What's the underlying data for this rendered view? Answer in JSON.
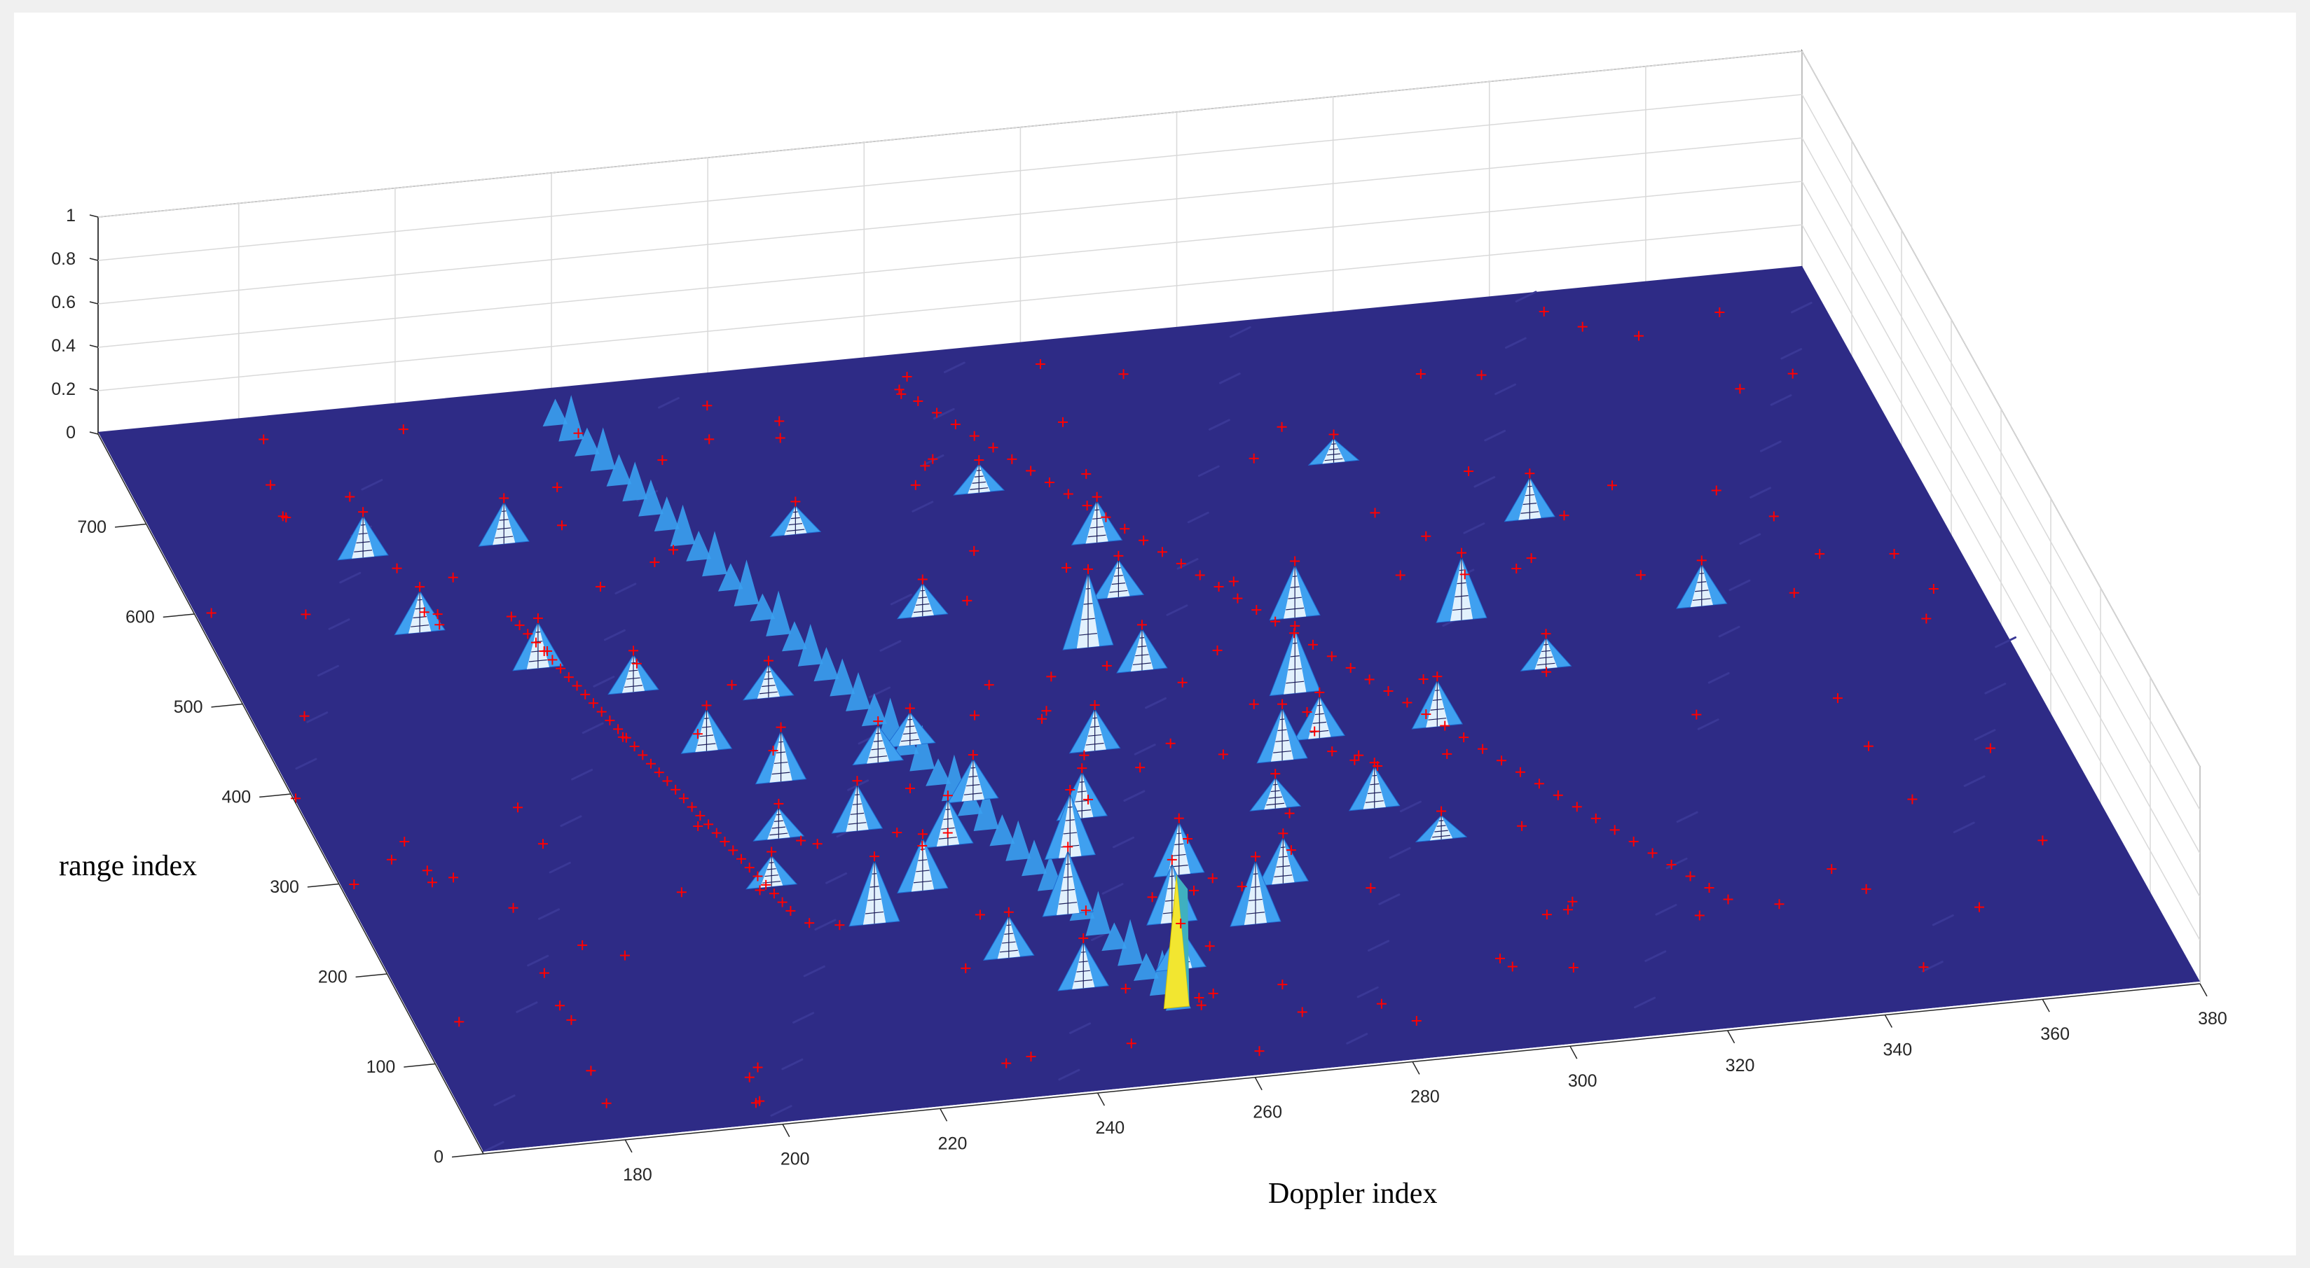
{
  "chart_data": {
    "type": "surface",
    "title": "",
    "xlabel": "Doppler index",
    "ylabel": "range index",
    "zlabel": "",
    "xlim": [
      162,
      380
    ],
    "ylim": [
      0,
      800
    ],
    "zlim": [
      0,
      1
    ],
    "x_ticks": [
      "180",
      "200",
      "220",
      "240",
      "260",
      "280",
      "300",
      "320",
      "340",
      "360",
      "380"
    ],
    "y_ticks": [
      "0",
      "100",
      "200",
      "300",
      "400",
      "500",
      "600",
      "700"
    ],
    "z_ticks": [
      "0",
      "0.2",
      "0.4",
      "0.6",
      "0.8",
      "1"
    ],
    "grid": true,
    "colormap": [
      "#2e2b86",
      "#1f6fd4",
      "#3fa0f0",
      "#ffffff",
      "#f2e630"
    ],
    "marker_color": "#ff0000",
    "max_peak": {
      "x": 255,
      "y": 80,
      "z": 1.0
    },
    "peaks": [
      {
        "x": 186,
        "y": 640,
        "z": 0.2
      },
      {
        "x": 200,
        "y": 505,
        "z": 0.22
      },
      {
        "x": 188,
        "y": 555,
        "z": 0.2
      },
      {
        "x": 204,
        "y": 640,
        "z": 0.2
      },
      {
        "x": 210,
        "y": 470,
        "z": 0.18
      },
      {
        "x": 215,
        "y": 400,
        "z": 0.2
      },
      {
        "x": 222,
        "y": 360,
        "z": 0.24
      },
      {
        "x": 228,
        "y": 300,
        "z": 0.22
      },
      {
        "x": 232,
        "y": 230,
        "z": 0.25
      },
      {
        "x": 226,
        "y": 450,
        "z": 0.16
      },
      {
        "x": 235,
        "y": 370,
        "z": 0.18
      },
      {
        "x": 218,
        "y": 300,
        "z": 0.15
      },
      {
        "x": 214,
        "y": 250,
        "z": 0.15
      },
      {
        "x": 224,
        "y": 200,
        "z": 0.3
      },
      {
        "x": 238,
        "y": 150,
        "z": 0.2
      },
      {
        "x": 245,
        "y": 110,
        "z": 0.22
      },
      {
        "x": 248,
        "y": 190,
        "z": 0.3
      },
      {
        "x": 238,
        "y": 275,
        "z": 0.22
      },
      {
        "x": 244,
        "y": 320,
        "z": 0.2
      },
      {
        "x": 252,
        "y": 250,
        "z": 0.3
      },
      {
        "x": 256,
        "y": 290,
        "z": 0.22
      },
      {
        "x": 260,
        "y": 170,
        "z": 0.28
      },
      {
        "x": 264,
        "y": 220,
        "z": 0.25
      },
      {
        "x": 270,
        "y": 160,
        "z": 0.3
      },
      {
        "x": 276,
        "y": 200,
        "z": 0.22
      },
      {
        "x": 262,
        "y": 360,
        "z": 0.2
      },
      {
        "x": 268,
        "y": 470,
        "z": 0.35
      },
      {
        "x": 273,
        "y": 440,
        "z": 0.2
      },
      {
        "x": 284,
        "y": 330,
        "z": 0.25
      },
      {
        "x": 292,
        "y": 270,
        "z": 0.2
      },
      {
        "x": 290,
        "y": 400,
        "z": 0.3
      },
      {
        "x": 295,
        "y": 480,
        "z": 0.25
      },
      {
        "x": 290,
        "y": 350,
        "z": 0.2
      },
      {
        "x": 305,
        "y": 350,
        "z": 0.22
      },
      {
        "x": 315,
        "y": 460,
        "z": 0.3
      },
      {
        "x": 322,
        "y": 400,
        "z": 0.15
      },
      {
        "x": 330,
        "y": 560,
        "z": 0.2
      },
      {
        "x": 345,
        "y": 450,
        "z": 0.2
      },
      {
        "x": 275,
        "y": 520,
        "z": 0.18
      },
      {
        "x": 276,
        "y": 580,
        "z": 0.2
      },
      {
        "x": 250,
        "y": 520,
        "z": 0.16
      },
      {
        "x": 240,
        "y": 620,
        "z": 0.14
      },
      {
        "x": 265,
        "y": 645,
        "z": 0.14
      },
      {
        "x": 310,
        "y": 640,
        "z": 0.12
      },
      {
        "x": 240,
        "y": 385,
        "z": 0.16
      },
      {
        "x": 280,
        "y": 280,
        "z": 0.15
      },
      {
        "x": 298,
        "y": 230,
        "z": 0.12
      },
      {
        "x": 258,
        "y": 120,
        "z": 0.2
      }
    ],
    "ridges": [
      {
        "from": {
          "x": 218,
          "y": 760
        },
        "to": {
          "x": 256,
          "y": 60
        },
        "z": 0.22,
        "color": "#3aa0f0"
      }
    ]
  }
}
